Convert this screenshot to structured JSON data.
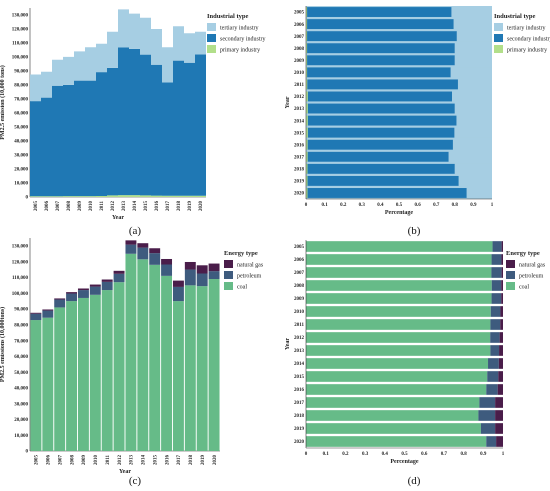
{
  "chart_data": [
    {
      "panel_label": "(a)",
      "type": "area",
      "stacked": true,
      "orientation": "vertical",
      "xlabel": "Year",
      "ylabel": "PM2.5 emission (10,000 tons)",
      "ylim": [
        0,
        135000
      ],
      "yticks": [
        "0",
        "10,000",
        "20,000",
        "30,000",
        "40,000",
        "50,000",
        "60,000",
        "70,000",
        "80,000",
        "90,000",
        "100,000",
        "110,000",
        "120,000",
        "130,000"
      ],
      "categories": [
        "2005",
        "2006",
        "2007",
        "2008",
        "2009",
        "2010",
        "2011",
        "2012",
        "2013",
        "2014",
        "2015",
        "2016",
        "2017",
        "2018",
        "2019",
        "2020"
      ],
      "legend": {
        "title": "Industrial type",
        "position": "top-right"
      },
      "series": [
        {
          "name": "primary industry",
          "color": "#b2df8a",
          "values": [
            500,
            500,
            500,
            600,
            600,
            600,
            700,
            1200,
            1300,
            1300,
            1200,
            1000,
            900,
            900,
            900,
            900
          ]
        },
        {
          "name": "secondary industry",
          "color": "#1f78b4",
          "values": [
            68000,
            70500,
            79000,
            79500,
            82500,
            82500,
            88500,
            91000,
            105500,
            104500,
            100500,
            93500,
            81000,
            96500,
            95000,
            101000
          ]
        },
        {
          "name": "tertiary industry",
          "color": "#a6cee3",
          "values": [
            19000,
            18500,
            18500,
            20000,
            20900,
            23900,
            20300,
            25800,
            27200,
            25200,
            26300,
            25500,
            25100,
            24600,
            21100,
            16100
          ]
        }
      ]
    },
    {
      "panel_label": "(b)",
      "type": "bar",
      "stacked": true,
      "orientation": "horizontal",
      "xlabel": "Percentage",
      "ylabel": "Year",
      "xlim": [
        0,
        1
      ],
      "xticks": [
        "0",
        "0.1",
        "0.2",
        "0.3",
        "0.4",
        "0.5",
        "0.6",
        "0.7",
        "0.8",
        "0.9",
        "1"
      ],
      "categories": [
        "2005",
        "2006",
        "2007",
        "2008",
        "2009",
        "2010",
        "2011",
        "2012",
        "2013",
        "2014",
        "2015",
        "2016",
        "2017",
        "2018",
        "2019",
        "2020"
      ],
      "legend": {
        "title": "Industrial type",
        "position": "top-right"
      },
      "series": [
        {
          "name": "primary industry",
          "color": "#b2df8a",
          "values": [
            0.006,
            0.006,
            0.006,
            0.006,
            0.006,
            0.006,
            0.007,
            0.01,
            0.01,
            0.01,
            0.01,
            0.009,
            0.009,
            0.008,
            0.008,
            0.008
          ]
        },
        {
          "name": "secondary industry",
          "color": "#1f78b4",
          "values": [
            0.776,
            0.788,
            0.805,
            0.794,
            0.794,
            0.772,
            0.81,
            0.775,
            0.79,
            0.799,
            0.788,
            0.781,
            0.758,
            0.792,
            0.813,
            0.856
          ]
        },
        {
          "name": "tertiary industry",
          "color": "#a6cee3",
          "values": [
            0.218,
            0.206,
            0.189,
            0.2,
            0.2,
            0.222,
            0.183,
            0.215,
            0.2,
            0.191,
            0.202,
            0.21,
            0.233,
            0.2,
            0.179,
            0.136
          ]
        }
      ]
    },
    {
      "panel_label": "(c)",
      "type": "bar",
      "stacked": true,
      "orientation": "vertical",
      "xlabel": "Year",
      "ylabel": "PM2.5 emissions (10,000tons)",
      "ylim": [
        0,
        135000
      ],
      "yticks": [
        "0",
        "10,000",
        "20,000",
        "30,000",
        "40,000",
        "50,000",
        "60,000",
        "70,000",
        "80,000",
        "90,000",
        "100,000",
        "110,000",
        "120,000",
        "130,000"
      ],
      "categories": [
        "2005",
        "2006",
        "2007",
        "2008",
        "2009",
        "2010",
        "2011",
        "2012",
        "2013",
        "2014",
        "2015",
        "2016",
        "2017",
        "2018",
        "2019",
        "2020"
      ],
      "legend": {
        "title": "Energy type",
        "position": "top-right"
      },
      "series": [
        {
          "name": "coal",
          "color": "#66bb88",
          "values": [
            83000,
            84500,
            91000,
            95000,
            97000,
            99000,
            102000,
            107000,
            125000,
            121500,
            118000,
            111000,
            95000,
            105000,
            104500,
            109000
          ]
        },
        {
          "name": "petroleum",
          "color": "#3e5b7e",
          "values": [
            4000,
            4500,
            5000,
            4800,
            5000,
            5200,
            5200,
            5300,
            5800,
            7400,
            7400,
            7200,
            9000,
            10000,
            8000,
            5000
          ]
        },
        {
          "name": "natural gas",
          "color": "#4a1d4a",
          "values": [
            600,
            700,
            700,
            900,
            1000,
            1300,
            1500,
            1900,
            2700,
            2800,
            3100,
            3500,
            4000,
            4800,
            5200,
            4800
          ]
        }
      ]
    },
    {
      "panel_label": "(d)",
      "type": "bar",
      "stacked": true,
      "orientation": "horizontal",
      "xlabel": "Percentage",
      "ylabel": "Year",
      "xlim": [
        0,
        1
      ],
      "xticks": [
        "0",
        "0.1",
        "0.2",
        "0.3",
        "0.4",
        "0.5",
        "0.6",
        "0.7",
        "0.8",
        "0.9",
        "1"
      ],
      "categories": [
        "2005",
        "2006",
        "2007",
        "2008",
        "2009",
        "2010",
        "2011",
        "2012",
        "2013",
        "2014",
        "2015",
        "2016",
        "2017",
        "2018",
        "2019",
        "2020"
      ],
      "legend": {
        "title": "Energy type",
        "position": "top-right"
      },
      "series": [
        {
          "name": "coal",
          "color": "#66bb88",
          "values": [
            0.947,
            0.942,
            0.941,
            0.943,
            0.942,
            0.938,
            0.936,
            0.935,
            0.936,
            0.924,
            0.92,
            0.915,
            0.88,
            0.875,
            0.888,
            0.915
          ]
        },
        {
          "name": "petroleum",
          "color": "#3e5b7e",
          "values": [
            0.046,
            0.05,
            0.052,
            0.048,
            0.049,
            0.049,
            0.05,
            0.048,
            0.044,
            0.055,
            0.056,
            0.058,
            0.08,
            0.085,
            0.072,
            0.05
          ]
        },
        {
          "name": "natural gas",
          "color": "#4a1d4a",
          "values": [
            0.007,
            0.008,
            0.007,
            0.009,
            0.009,
            0.013,
            0.014,
            0.017,
            0.02,
            0.021,
            0.024,
            0.027,
            0.04,
            0.04,
            0.04,
            0.035
          ]
        }
      ]
    }
  ]
}
